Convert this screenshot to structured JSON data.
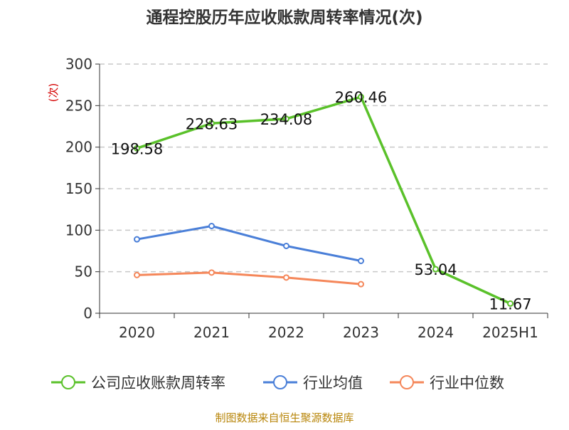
{
  "chart_data": {
    "type": "line",
    "title": "通程控股历年应收账款周转率情况(次)",
    "ylabel": "(次)",
    "categories": [
      "2020",
      "2021",
      "2022",
      "2023",
      "2024",
      "2025H1"
    ],
    "ylim": [
      0,
      300
    ],
    "yticks": [
      0,
      50,
      100,
      150,
      200,
      250,
      300
    ],
    "grid": true,
    "legend_position": "bottom",
    "series": [
      {
        "name": "公司应收账款周转率",
        "color": "#5ac12a",
        "values": [
          198.58,
          228.63,
          234.08,
          260.46,
          53.04,
          11.67
        ],
        "labels": [
          "198.58",
          "228.63",
          "234.08",
          "260.46",
          "53.04",
          "11.67"
        ]
      },
      {
        "name": "行业均值",
        "color": "#4a7fd8",
        "values": [
          89,
          105,
          81,
          63,
          null,
          null
        ]
      },
      {
        "name": "行业中位数",
        "color": "#f5875a",
        "values": [
          46,
          49,
          43,
          35,
          null,
          null
        ]
      }
    ]
  },
  "source": "制图数据来自恒生聚源数据库"
}
